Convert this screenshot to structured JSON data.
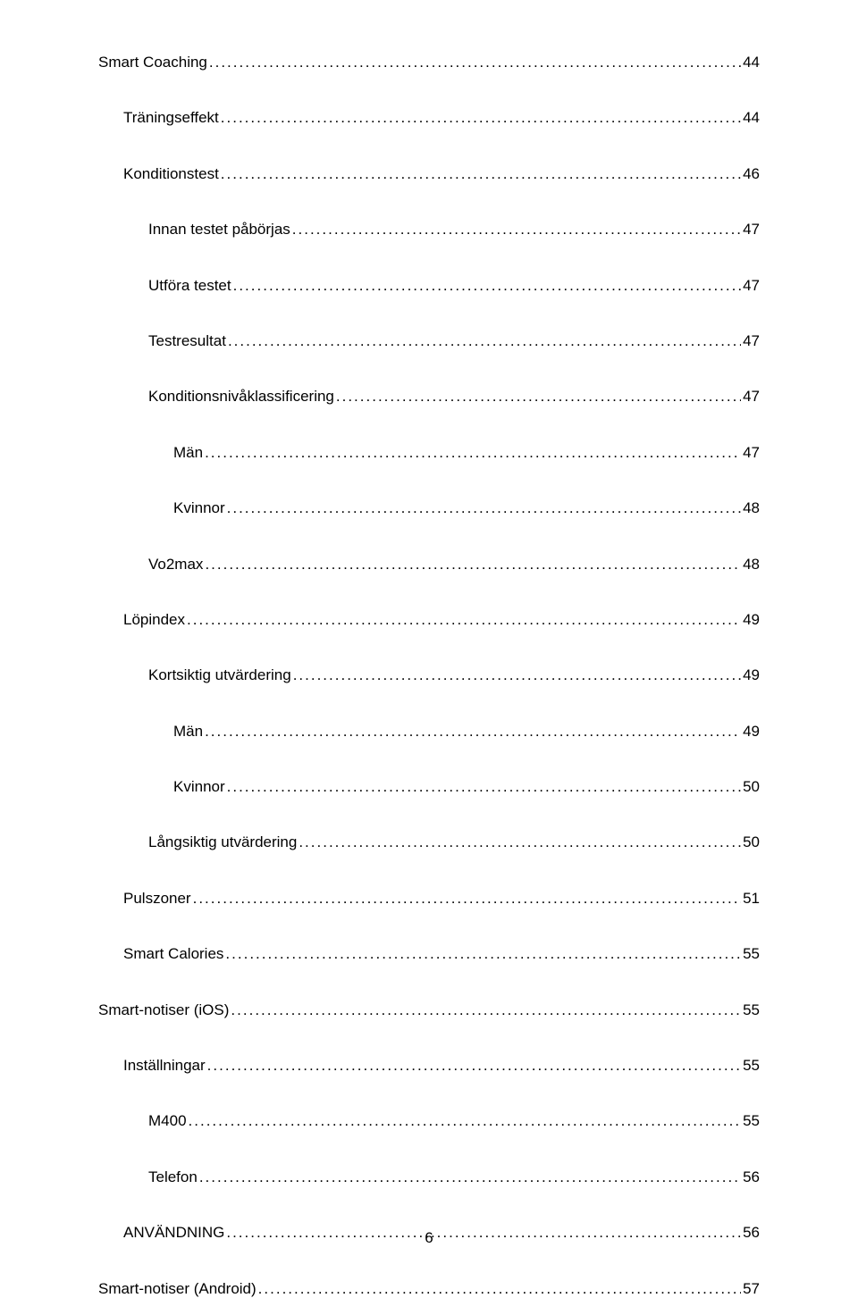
{
  "page_number": "6",
  "text_color": "#000000",
  "background_color": "#ffffff",
  "font_size_pt": 13,
  "leader_char": ".",
  "toc": [
    {
      "label": "Smart Coaching",
      "page": "44",
      "indent": 0
    },
    {
      "label": "Träningseffekt",
      "page": "44",
      "indent": 1
    },
    {
      "label": "Konditionstest",
      "page": "46",
      "indent": 1
    },
    {
      "label": "Innan testet påbörjas",
      "page": "47",
      "indent": 2
    },
    {
      "label": "Utföra testet",
      "page": "47",
      "indent": 2
    },
    {
      "label": "Testresultat",
      "page": "47",
      "indent": 2
    },
    {
      "label": "Konditionsnivåklassificering",
      "page": "47",
      "indent": 2
    },
    {
      "label": "Män",
      "page": "47",
      "indent": 3
    },
    {
      "label": "Kvinnor",
      "page": "48",
      "indent": 3
    },
    {
      "label": "Vo2max",
      "page": "48",
      "indent": 2
    },
    {
      "label": "Löpindex",
      "page": "49",
      "indent": 1
    },
    {
      "label": "Kortsiktig utvärdering",
      "page": "49",
      "indent": 2
    },
    {
      "label": "Män",
      "page": "49",
      "indent": 3
    },
    {
      "label": "Kvinnor",
      "page": "50",
      "indent": 3
    },
    {
      "label": "Långsiktig utvärdering",
      "page": "50",
      "indent": 2
    },
    {
      "label": "Pulszoner",
      "page": "51",
      "indent": 1
    },
    {
      "label": "Smart Calories",
      "page": "55",
      "indent": 1
    },
    {
      "label": "Smart-notiser (iOS)",
      "page": "55",
      "indent": 0
    },
    {
      "label": "Inställningar",
      "page": "55",
      "indent": 1
    },
    {
      "label": "M400",
      "page": "55",
      "indent": 2
    },
    {
      "label": "Telefon",
      "page": "56",
      "indent": 2
    },
    {
      "label": "ANVÄNDNING",
      "page": "56",
      "indent": 1
    },
    {
      "label": "Smart-notiser (Android)",
      "page": "57",
      "indent": 0
    }
  ]
}
